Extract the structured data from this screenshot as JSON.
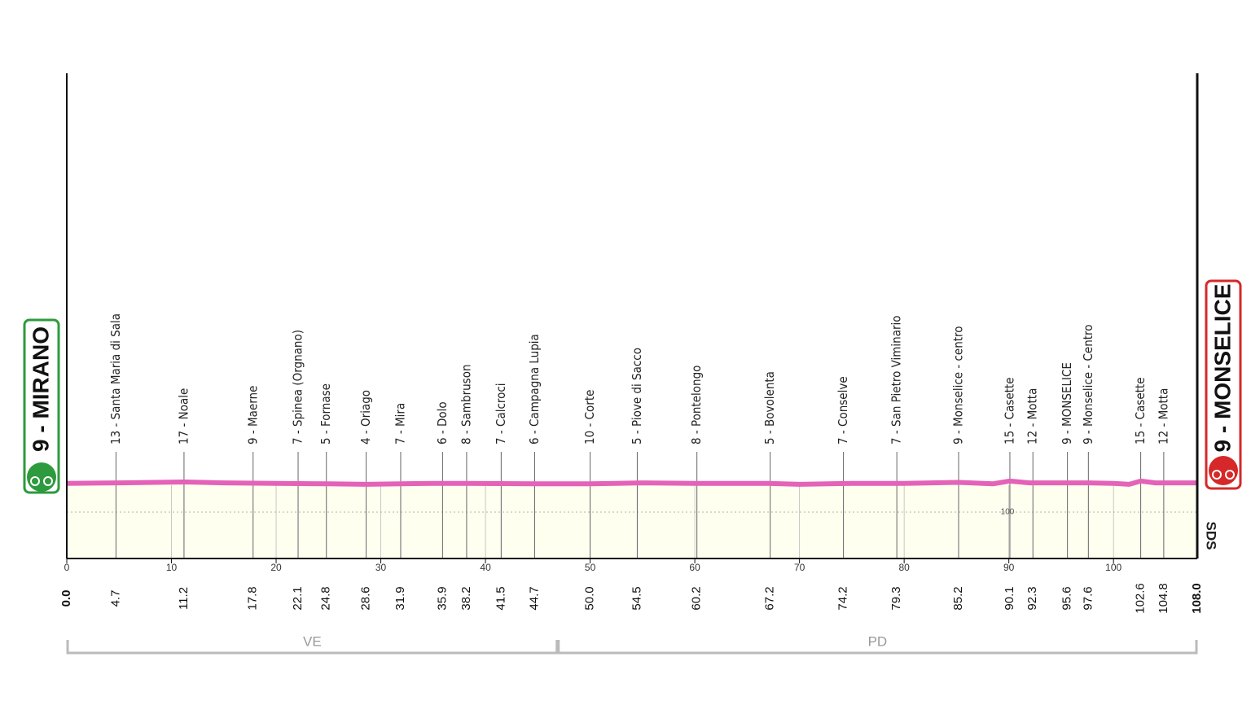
{
  "chart_data": {
    "type": "profile",
    "start": "9 - MIRANO",
    "finish": "9 - MONSELICE",
    "logo": "SDS",
    "color": "#e462b8",
    "fill": "#fffff0",
    "grid": true,
    "xlim": [
      0,
      108
    ],
    "xticks": [
      0,
      10,
      20,
      30,
      40,
      50,
      60,
      70,
      80,
      90,
      100
    ],
    "ylim": [
      0,
      1046
    ],
    "yticks": [
      100
    ],
    "profile": {
      "km": [
        0,
        5,
        11.2,
        15,
        20,
        25,
        28.6,
        35,
        38,
        45,
        50,
        55,
        60,
        67,
        70,
        75,
        80,
        85.2,
        88.5,
        90.1,
        92,
        97.6,
        100,
        101.5,
        102.6,
        104,
        108
      ],
      "elevation": [
        162,
        163,
        165,
        163,
        162,
        161,
        160,
        162,
        162,
        161,
        161,
        163,
        162,
        162,
        160,
        162,
        162,
        164,
        161,
        167,
        163,
        163,
        162,
        160,
        167,
        163,
        163
      ]
    },
    "waypoints": {
      "km": [
        0,
        4.7,
        11.2,
        17.8,
        22.1,
        24.8,
        28.6,
        31.9,
        35.9,
        38.2,
        41.5,
        44.7,
        50,
        54.5,
        60.2,
        67.2,
        74.2,
        79.3,
        85.2,
        90.1,
        92.3,
        95.6,
        97.6,
        102.6,
        104.8,
        108
      ],
      "km_labels": [
        "0.0",
        "4.7",
        "11.2",
        "17.8",
        "22.1",
        "24.8",
        "28.6",
        "31.9",
        "35.9",
        "38.2",
        "41.5",
        "44.7",
        "50.0",
        "54.5",
        "60.2",
        "67.2",
        "74.2",
        "79.3",
        "85.2",
        "90.1",
        "92.3",
        "95.6",
        "97.6",
        "102.6",
        "104.8",
        "108.0"
      ],
      "names": [
        null,
        "13 - Santa Maria di Sala",
        "17 - Noale",
        "9 - Maerne",
        "7 - Spinea (Orgnano)",
        "5 - Fornase",
        "4 - Oriago",
        "7 - Mira",
        "6 - Dolo",
        "8 - Sambruson",
        "7 - Calcroci",
        "6 - Campagna Lupia",
        "10 - Corte",
        "5 - Piove di Sacco",
        "8 - Pontelongo",
        "5 - Bovolenta",
        "7 - Conselve",
        "7 - San Pietro Viminario",
        "9 - Monselice - centro",
        "15 - Casette",
        "12 - Motta",
        "9 - MONSELICE",
        "9 - Monselice - Centro",
        "15 - Casette",
        "12 - Motta",
        null
      ]
    },
    "regions": [
      {
        "name": "VE",
        "from": 0,
        "to": 46.9
      },
      {
        "name": "PD",
        "from": 46.9,
        "to": 108
      }
    ]
  }
}
